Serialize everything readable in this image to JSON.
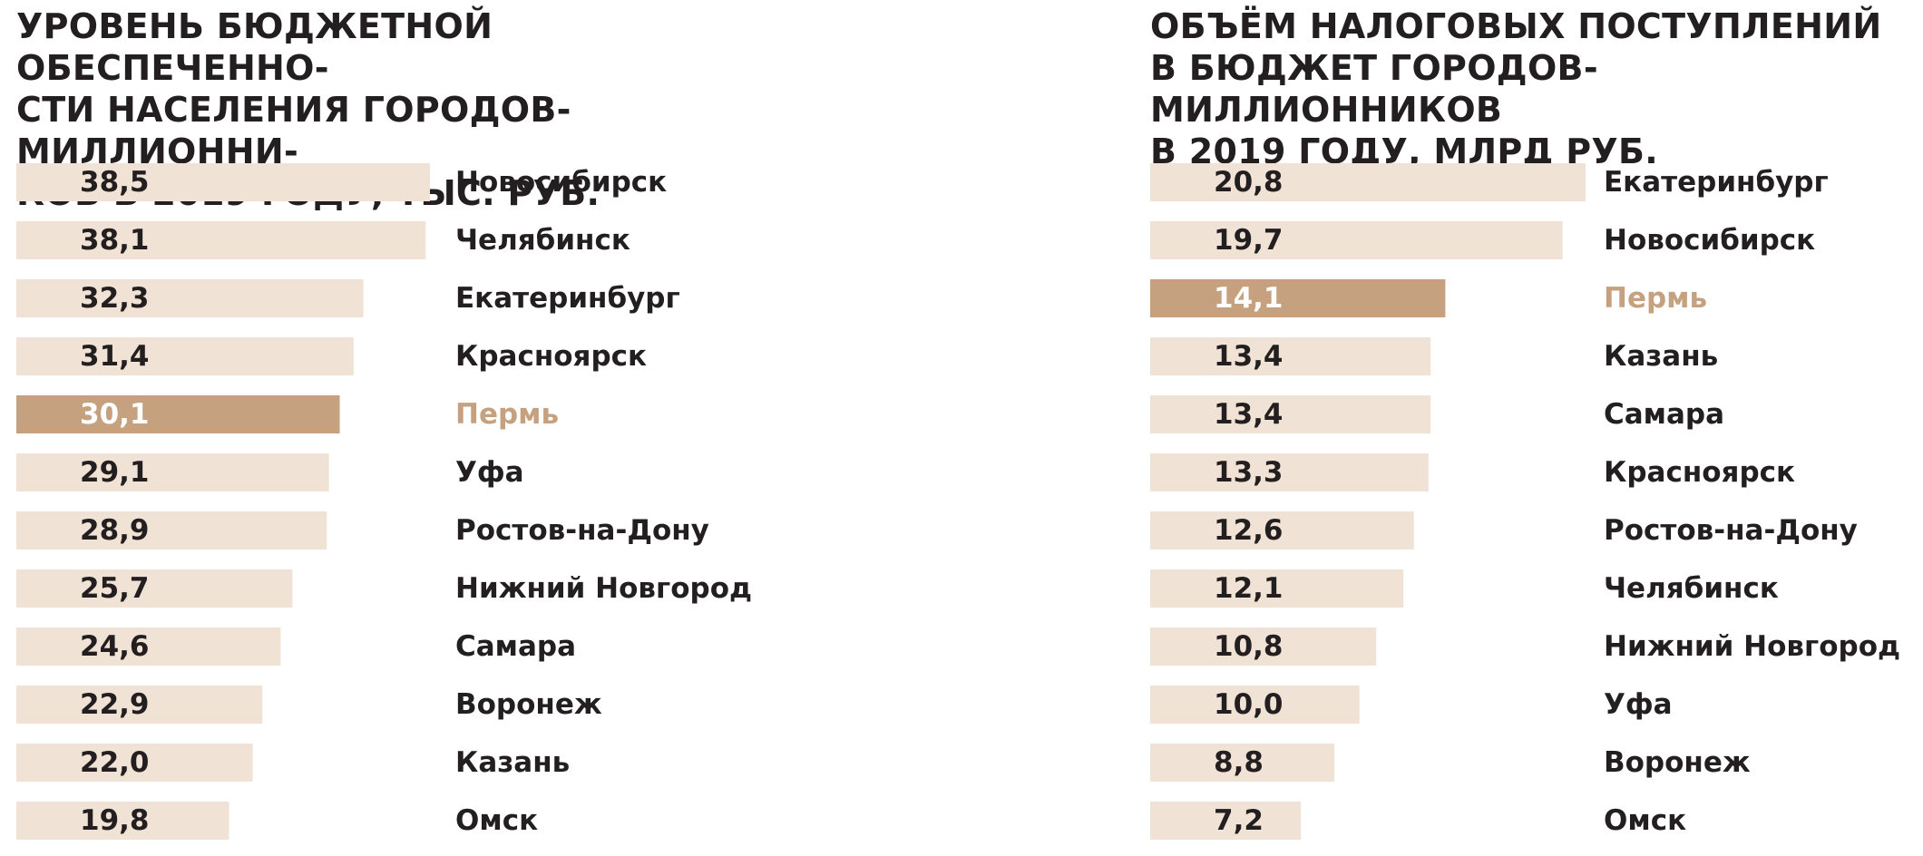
{
  "colors": {
    "bar": "#f0e3d6",
    "highlight_bar": "#c6a17f",
    "text": "#231f20",
    "highlight_label": "#c6a17f",
    "highlight_value_text": "#ffffff"
  },
  "chart_data": [
    {
      "type": "bar",
      "orientation": "horizontal",
      "title": "УРОВЕНЬ БЮДЖЕТНОЙ ОБЕСПЕЧЕННО-\nСТИ НАСЕЛЕНИЯ ГОРОДОВ-МИЛЛИОННИ-\nКОВ В 2019 ГОДУ, ТЫС. РУБ.",
      "categories": [
        "Новосибирск",
        "Челябинск",
        "Екатеринбург",
        "Красноярск",
        "Пермь",
        "Уфа",
        "Ростов-на-Дону",
        "Нижний Новгород",
        "Самара",
        "Воронеж",
        "Казань",
        "Омск"
      ],
      "value_labels": [
        "38,5",
        "38,1",
        "32,3",
        "31,4",
        "30,1",
        "29,1",
        "28,9",
        "25,7",
        "24,6",
        "22,9",
        "22,0",
        "19,8"
      ],
      "values": [
        38.5,
        38.1,
        32.3,
        31.4,
        30.1,
        29.1,
        28.9,
        25.7,
        24.6,
        22.9,
        22.0,
        19.8
      ],
      "highlight": "Пермь",
      "xlim": [
        0,
        38.5
      ]
    },
    {
      "type": "bar",
      "orientation": "horizontal",
      "title": "ОБЪЁМ НАЛОГОВЫХ ПОСТУПЛЕНИЙ\nВ БЮДЖЕТ ГОРОДОВ-МИЛЛИОННИКОВ\nВ 2019 ГОДУ, МЛРД РУБ.",
      "categories": [
        "Екатеринбург",
        "Новосибирск",
        "Пермь",
        "Казань",
        "Самара",
        "Красноярск",
        "Ростов-на-Дону",
        "Челябинск",
        "Нижний Новгород",
        "Уфа",
        "Воронеж",
        "Омск"
      ],
      "value_labels": [
        "20,8",
        "19,7",
        "14,1",
        "13,4",
        "13,4",
        "13,3",
        "12,6",
        "12,1",
        "10,8",
        "10,0",
        "8,8",
        "7,2"
      ],
      "values": [
        20.8,
        19.7,
        14.1,
        13.4,
        13.4,
        13.3,
        12.6,
        12.1,
        10.8,
        10.0,
        8.8,
        7.2
      ],
      "highlight": "Пермь",
      "xlim": [
        0,
        20.8
      ]
    }
  ]
}
